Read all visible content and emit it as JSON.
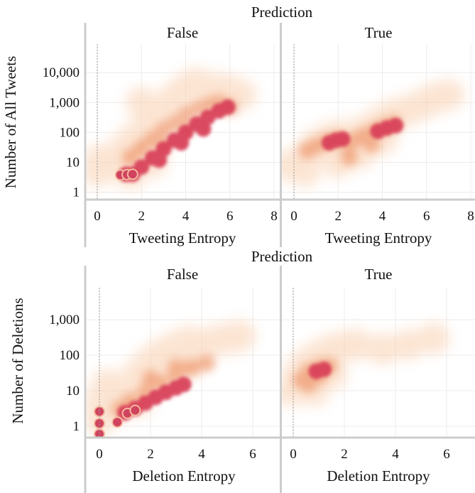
{
  "chart_data": [
    {
      "type": "heatmap",
      "facet_title": "Prediction",
      "facets": [
        "False",
        "True"
      ],
      "xlabel": "Tweeting Entropy",
      "ylabel": "Number of All Tweets",
      "x_scale": "linear",
      "y_scale": "log",
      "xlim": [
        -0.5,
        8
      ],
      "ylim": [
        0.6,
        90000
      ],
      "xticks": [
        0,
        2,
        4,
        6,
        8
      ],
      "xtick_labels": [
        "0",
        "2",
        "4",
        "6",
        "8"
      ],
      "yticks": [
        1,
        10,
        100,
        1000,
        10000
      ],
      "ytick_labels": [
        "1",
        "10",
        "100",
        "1,000",
        "10,000"
      ],
      "grid": true,
      "panels": {
        "False": {
          "low_density": [
            {
              "x": 0,
              "y": 5
            },
            {
              "x": 0.1,
              "y": 12
            },
            {
              "x": 0.7,
              "y": 8
            },
            {
              "x": 1.0,
              "y": 20
            },
            {
              "x": 1.5,
              "y": 50
            },
            {
              "x": 2.0,
              "y": 100
            },
            {
              "x": 2.5,
              "y": 250
            },
            {
              "x": 3.0,
              "y": 600
            },
            {
              "x": 3.5,
              "y": 1500
            },
            {
              "x": 4.0,
              "y": 3000
            },
            {
              "x": 4.5,
              "y": 4500
            },
            {
              "x": 5.0,
              "y": 2500
            },
            {
              "x": 5.5,
              "y": 3000
            },
            {
              "x": 6.0,
              "y": 2500
            },
            {
              "x": 6.5,
              "y": 1800
            },
            {
              "x": 1.5,
              "y": 4
            },
            {
              "x": 2.5,
              "y": 10
            },
            {
              "x": 3.0,
              "y": 600
            },
            {
              "x": 2.0,
              "y": 1000
            }
          ],
          "mid_density": [
            {
              "x": 1.5,
              "y": 15
            },
            {
              "x": 2.0,
              "y": 30
            },
            {
              "x": 2.5,
              "y": 60
            },
            {
              "x": 3.0,
              "y": 120
            },
            {
              "x": 3.5,
              "y": 200
            },
            {
              "x": 4.0,
              "y": 400
            },
            {
              "x": 4.5,
              "y": 600
            },
            {
              "x": 5.0,
              "y": 800
            },
            {
              "x": 5.5,
              "y": 1000
            },
            {
              "x": 6.0,
              "y": 700
            },
            {
              "x": 3.0,
              "y": 40
            },
            {
              "x": 4.0,
              "y": 150
            }
          ],
          "high_density": [
            {
              "x": 1.3,
              "y": 4
            },
            {
              "x": 1.6,
              "y": 4
            },
            {
              "x": 2.0,
              "y": 7
            },
            {
              "x": 2.5,
              "y": 14
            },
            {
              "x": 3.0,
              "y": 28
            },
            {
              "x": 3.5,
              "y": 55
            },
            {
              "x": 4.0,
              "y": 100
            },
            {
              "x": 4.5,
              "y": 190
            },
            {
              "x": 5.0,
              "y": 320
            },
            {
              "x": 5.5,
              "y": 520
            },
            {
              "x": 5.9,
              "y": 700
            },
            {
              "x": 2.8,
              "y": 12
            },
            {
              "x": 3.8,
              "y": 45
            },
            {
              "x": 4.8,
              "y": 130
            }
          ],
          "points": [
            {
              "x": 1.05,
              "y": 3.8
            },
            {
              "x": 1.35,
              "y": 3.9
            },
            {
              "x": 1.6,
              "y": 4.0
            }
          ]
        },
        "True": {
          "low_density": [
            {
              "x": -0.2,
              "y": 8
            },
            {
              "x": 0.5,
              "y": 15
            },
            {
              "x": 0.5,
              "y": 5
            },
            {
              "x": 1.0,
              "y": 40
            },
            {
              "x": 1.5,
              "y": 60
            },
            {
              "x": 2.0,
              "y": 80
            },
            {
              "x": 2.5,
              "y": 60
            },
            {
              "x": 3.0,
              "y": 100
            },
            {
              "x": 3.5,
              "y": 150
            },
            {
              "x": 4.0,
              "y": 250
            },
            {
              "x": 4.5,
              "y": 400
            },
            {
              "x": 5.0,
              "y": 500
            },
            {
              "x": 5.5,
              "y": 700
            },
            {
              "x": 6.0,
              "y": 1000
            },
            {
              "x": 6.5,
              "y": 1500
            },
            {
              "x": 7.0,
              "y": 1800
            },
            {
              "x": 2.0,
              "y": 10
            },
            {
              "x": 3.0,
              "y": 20
            },
            {
              "x": 4.0,
              "y": 60
            }
          ],
          "mid_density": [
            {
              "x": 0.6,
              "y": 25
            },
            {
              "x": 1.0,
              "y": 35
            },
            {
              "x": 1.5,
              "y": 50
            },
            {
              "x": 2.0,
              "y": 60
            },
            {
              "x": 2.5,
              "y": 45
            },
            {
              "x": 3.0,
              "y": 70
            },
            {
              "x": 3.5,
              "y": 100
            },
            {
              "x": 4.0,
              "y": 150
            },
            {
              "x": 4.5,
              "y": 200
            },
            {
              "x": 2.5,
              "y": 15
            },
            {
              "x": 3.5,
              "y": 40
            }
          ],
          "high_density": [
            {
              "x": 1.6,
              "y": 45
            },
            {
              "x": 1.9,
              "y": 55
            },
            {
              "x": 2.2,
              "y": 60
            },
            {
              "x": 3.8,
              "y": 110
            },
            {
              "x": 4.2,
              "y": 140
            },
            {
              "x": 4.6,
              "y": 170
            }
          ],
          "points": []
        }
      }
    },
    {
      "type": "heatmap",
      "facet_title": "Prediction",
      "facets": [
        "False",
        "True"
      ],
      "xlabel": "Deletion Entropy",
      "ylabel": "Number of Deletions",
      "x_scale": "linear",
      "y_scale": "log",
      "xlim": [
        -0.5,
        7
      ],
      "ylim": [
        0.5,
        8000
      ],
      "xticks": [
        0,
        2,
        4,
        6
      ],
      "xtick_labels": [
        "0",
        "2",
        "4",
        "6"
      ],
      "yticks": [
        1,
        10,
        100,
        1000
      ],
      "ytick_labels": [
        "1",
        "10",
        "100",
        "1,000"
      ],
      "grid": true,
      "panels": {
        "False": {
          "low_density": [
            {
              "x": 0,
              "y": 1.5
            },
            {
              "x": 0,
              "y": 5
            },
            {
              "x": 0.3,
              "y": 15
            },
            {
              "x": 0.5,
              "y": 3
            },
            {
              "x": 1.0,
              "y": 10
            },
            {
              "x": 1.5,
              "y": 30
            },
            {
              "x": 2.0,
              "y": 70
            },
            {
              "x": 2.5,
              "y": 120
            },
            {
              "x": 3.0,
              "y": 180
            },
            {
              "x": 3.5,
              "y": 250
            },
            {
              "x": 4.0,
              "y": 200
            },
            {
              "x": 4.5,
              "y": 250
            },
            {
              "x": 5.0,
              "y": 300
            },
            {
              "x": 5.5,
              "y": 350
            },
            {
              "x": 1.5,
              "y": 5
            },
            {
              "x": 2.5,
              "y": 25
            },
            {
              "x": 3.5,
              "y": 60
            }
          ],
          "mid_density": [
            {
              "x": 0.8,
              "y": 3
            },
            {
              "x": 1.2,
              "y": 5
            },
            {
              "x": 1.8,
              "y": 9
            },
            {
              "x": 2.4,
              "y": 16
            },
            {
              "x": 3.0,
              "y": 28
            },
            {
              "x": 3.6,
              "y": 45
            },
            {
              "x": 4.2,
              "y": 60
            },
            {
              "x": 2.0,
              "y": 22
            },
            {
              "x": 3.0,
              "y": 45
            }
          ],
          "high_density": [
            {
              "x": 1.0,
              "y": 2.4
            },
            {
              "x": 1.4,
              "y": 3.2
            },
            {
              "x": 1.8,
              "y": 4.5
            },
            {
              "x": 2.2,
              "y": 6.5
            },
            {
              "x": 2.6,
              "y": 9
            },
            {
              "x": 3.0,
              "y": 12
            },
            {
              "x": 3.3,
              "y": 15
            }
          ],
          "points": [
            {
              "x": 0,
              "y": 0.6
            },
            {
              "x": 0,
              "y": 1.2
            },
            {
              "x": 0,
              "y": 2.6
            },
            {
              "x": 0.7,
              "y": 1.3
            },
            {
              "x": 1.1,
              "y": 2.3
            },
            {
              "x": 1.4,
              "y": 2.8
            }
          ]
        },
        "True": {
          "low_density": [
            {
              "x": -0.1,
              "y": 10
            },
            {
              "x": 0.2,
              "y": 30
            },
            {
              "x": 0.5,
              "y": 60
            },
            {
              "x": 1.0,
              "y": 100
            },
            {
              "x": 1.5,
              "y": 150
            },
            {
              "x": 2.0,
              "y": 180
            },
            {
              "x": 2.5,
              "y": 200
            },
            {
              "x": 0.8,
              "y": 10
            },
            {
              "x": 1.5,
              "y": 30
            },
            {
              "x": 3.5,
              "y": 150
            },
            {
              "x": 4.5,
              "y": 200
            },
            {
              "x": 5.5,
              "y": 300
            }
          ],
          "mid_density": [
            {
              "x": 0.3,
              "y": 20
            },
            {
              "x": 0.6,
              "y": 35
            },
            {
              "x": 1.0,
              "y": 45
            },
            {
              "x": 1.4,
              "y": 50
            },
            {
              "x": 1.0,
              "y": 25
            },
            {
              "x": 0.6,
              "y": 15
            }
          ],
          "high_density": [
            {
              "x": 0.9,
              "y": 35
            },
            {
              "x": 1.2,
              "y": 40
            }
          ],
          "points": []
        }
      }
    }
  ]
}
